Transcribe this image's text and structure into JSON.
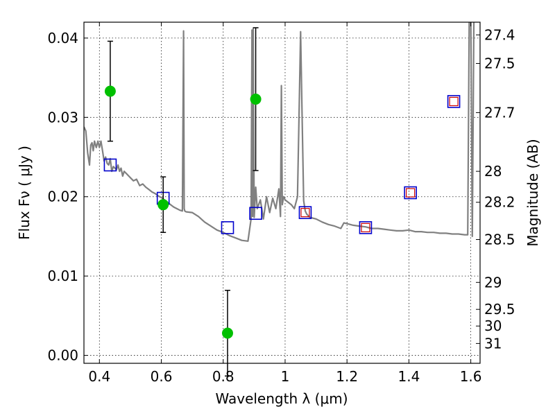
{
  "chart_data": {
    "type": "scatter",
    "title": "",
    "xlabel": "Wavelength  λ (μm)",
    "ylabel": "Flux  Fν  ( μJy )",
    "ylabel_right": "Magnitude (AB)",
    "xlim": [
      0.35,
      1.63
    ],
    "ylim": [
      -0.001,
      0.042
    ],
    "grid": true,
    "x_ticks": [
      0.4,
      0.6,
      0.8,
      1.0,
      1.2,
      1.4,
      1.6
    ],
    "x_tick_labels": [
      "0.4",
      "0.6",
      "0.8",
      "1",
      "1.2",
      "1.4",
      "1.6"
    ],
    "y_ticks": [
      0.0,
      0.01,
      0.02,
      0.03,
      0.04
    ],
    "y_tick_labels": [
      "0.00",
      "0.01",
      "0.02",
      "0.03",
      "0.04"
    ],
    "right_ticks": [
      {
        "mag": "27.4",
        "flux": 0.0404
      },
      {
        "mag": "27.5",
        "flux": 0.0368
      },
      {
        "mag": "27.7",
        "flux": 0.0306
      },
      {
        "mag": "28",
        "flux": 0.0232
      },
      {
        "mag": "28.2",
        "flux": 0.0193
      },
      {
        "mag": "28.5",
        "flux": 0.0146
      },
      {
        "mag": "29",
        "flux": 0.0092
      },
      {
        "mag": "29.5",
        "flux": 0.0058
      },
      {
        "mag": "30",
        "flux": 0.0037
      },
      {
        "mag": "31",
        "flux": 0.0015
      }
    ],
    "colors": {
      "observed": "#00c000",
      "model_phot": "#0000cc",
      "model_phot_inner": "#cc0000",
      "spectrum": "#808080"
    },
    "series": [
      {
        "kind": "observed",
        "x": [
          0.435,
          0.606,
          0.814,
          0.905
        ],
        "y": [
          0.0333,
          0.019,
          0.0028,
          0.0323
        ],
        "err": [
          0.0063,
          0.0035,
          0.0054,
          0.009
        ]
      },
      {
        "kind": "model_phot",
        "x": [
          0.435,
          0.606,
          0.814,
          0.905,
          1.065,
          1.26,
          1.405,
          1.545
        ],
        "y": [
          0.024,
          0.0198,
          0.0161,
          0.0179,
          0.018,
          0.0161,
          0.0205,
          0.032
        ]
      },
      {
        "kind": "model_phot_inner",
        "x": [
          1.065,
          1.26,
          1.405,
          1.545
        ],
        "y": [
          0.018,
          0.0161,
          0.0205,
          0.032
        ]
      },
      {
        "kind": "spectrum",
        "x": [
          0.35,
          0.356,
          0.362,
          0.368,
          0.372,
          0.376,
          0.38,
          0.384,
          0.39,
          0.395,
          0.4,
          0.405,
          0.41,
          0.415,
          0.42,
          0.425,
          0.43,
          0.435,
          0.44,
          0.445,
          0.45,
          0.455,
          0.46,
          0.465,
          0.47,
          0.475,
          0.48,
          0.485,
          0.49,
          0.5,
          0.51,
          0.52,
          0.53,
          0.54,
          0.55,
          0.56,
          0.57,
          0.58,
          0.59,
          0.6,
          0.61,
          0.62,
          0.63,
          0.64,
          0.65,
          0.66,
          0.668,
          0.672,
          0.674,
          0.676,
          0.68,
          0.7,
          0.72,
          0.74,
          0.76,
          0.78,
          0.8,
          0.82,
          0.84,
          0.86,
          0.88,
          0.89,
          0.893,
          0.895,
          0.897,
          0.9,
          0.905,
          0.91,
          0.92,
          0.93,
          0.94,
          0.95,
          0.96,
          0.97,
          0.98,
          0.985,
          0.988,
          0.991,
          0.995,
          1.0,
          1.01,
          1.02,
          1.03,
          1.04,
          1.045,
          1.05,
          1.055,
          1.06,
          1.065,
          1.07,
          1.08,
          1.1,
          1.12,
          1.14,
          1.16,
          1.18,
          1.19,
          1.2,
          1.22,
          1.24,
          1.26,
          1.28,
          1.3,
          1.32,
          1.34,
          1.36,
          1.38,
          1.4,
          1.42,
          1.44,
          1.46,
          1.48,
          1.5,
          1.52,
          1.54,
          1.56,
          1.58,
          1.59,
          1.595,
          1.6,
          1.605,
          1.61
        ],
        "y": [
          0.0288,
          0.0283,
          0.0255,
          0.024,
          0.0265,
          0.0268,
          0.0258,
          0.027,
          0.0262,
          0.027,
          0.0262,
          0.027,
          0.0258,
          0.0245,
          0.025,
          0.0242,
          0.024,
          0.0248,
          0.0232,
          0.0238,
          0.0236,
          0.0234,
          0.024,
          0.0232,
          0.0236,
          0.0226,
          0.0232,
          0.023,
          0.0228,
          0.0224,
          0.022,
          0.0222,
          0.0214,
          0.0216,
          0.0212,
          0.0209,
          0.0206,
          0.0204,
          0.0201,
          0.0199,
          0.0196,
          0.0193,
          0.019,
          0.0187,
          0.0185,
          0.0183,
          0.0182,
          0.0409,
          0.0185,
          0.0182,
          0.0181,
          0.018,
          0.0175,
          0.0168,
          0.0163,
          0.0158,
          0.0155,
          0.0151,
          0.0148,
          0.0145,
          0.0144,
          0.0172,
          0.041,
          0.0175,
          0.0412,
          0.0174,
          0.0212,
          0.0185,
          0.0196,
          0.0172,
          0.02,
          0.018,
          0.0198,
          0.0185,
          0.021,
          0.0175,
          0.034,
          0.019,
          0.02,
          0.0196,
          0.0193,
          0.019,
          0.0185,
          0.02,
          0.03,
          0.0408,
          0.03,
          0.0195,
          0.0182,
          0.0178,
          0.0174,
          0.0172,
          0.0168,
          0.0165,
          0.0163,
          0.016,
          0.0167,
          0.0166,
          0.0164,
          0.0163,
          0.0162,
          0.016,
          0.016,
          0.0159,
          0.0158,
          0.0157,
          0.0157,
          0.0158,
          0.0156,
          0.0156,
          0.0155,
          0.0155,
          0.0154,
          0.0154,
          0.0153,
          0.0153,
          0.0152,
          0.0152,
          0.043,
          0.043,
          0.015,
          0.043
        ]
      }
    ]
  }
}
